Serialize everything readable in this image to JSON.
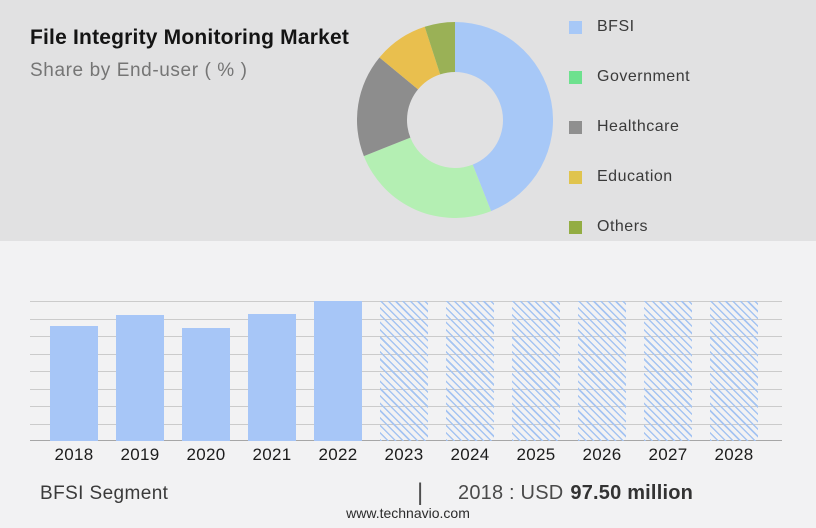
{
  "header": {
    "title": "File Integrity Monitoring Market",
    "subtitle": "Share by End-user ( % )"
  },
  "footer": {
    "segment_label": "BFSI Segment",
    "separator": "|",
    "stat_prefix": "2018 : USD",
    "stat_value": "97.50 million",
    "website": "www.technavio.com"
  },
  "colors": {
    "top_bg": "#E1E1E2",
    "bottom_bg": "#F2F2F3",
    "gridline": "#CBCBCB",
    "axis_line": "#A6A6A6",
    "solid_bar": "#A7C6F7",
    "hatch_stroke": "#A5C4F2",
    "title_text": "#141414",
    "subtitle_text": "#757575",
    "legend_text": "#3A3A3A"
  },
  "chart_data": [
    {
      "type": "pie",
      "subtype": "donut",
      "title": "File Integrity Monitoring Market - Share by End-user ( % )",
      "labels": [
        "BFSI",
        "Government",
        "Healthcare",
        "Education",
        "Others"
      ],
      "values": [
        44,
        25,
        17,
        9,
        5
      ],
      "unit": "%",
      "slice_colors": [
        "#A7C8F7",
        "#B4EFB3",
        "#8D8D8D",
        "#E9BF4E",
        "#9AB156"
      ],
      "legend_colors": [
        "#A7C8F7",
        "#6DE18E",
        "#8F8F8F",
        "#E0C44E",
        "#93AD43"
      ],
      "legend_position": "right",
      "start_angle_deg": 0,
      "direction": "clockwise",
      "inner_radius_ratio": 0.49,
      "note": "no numeric labels shown on chart; values estimated from arc angles"
    },
    {
      "type": "bar",
      "title": "BFSI Segment",
      "categories": [
        "2018",
        "2019",
        "2020",
        "2021",
        "2022",
        "2023",
        "2024",
        "2025",
        "2026",
        "2027",
        "2028"
      ],
      "series": [
        {
          "name": "BFSI segment size",
          "relative_heights": [
            0.82,
            0.9,
            0.81,
            0.91,
            1.0,
            1.0,
            1.0,
            1.0,
            1.0,
            1.0,
            1.0
          ],
          "styles": [
            "solid",
            "solid",
            "solid",
            "solid",
            "solid",
            "hatched",
            "hatched",
            "hatched",
            "hatched",
            "hatched",
            "hatched"
          ],
          "estimated_values_usd_million": [
            97.5,
            106.9,
            97.1,
            108.2,
            118.8,
            null,
            null,
            null,
            null,
            null,
            null
          ]
        }
      ],
      "anchor_label": "2018 : USD 97.50 million",
      "forecast_years": [
        "2023",
        "2024",
        "2025",
        "2026",
        "2027",
        "2028"
      ],
      "gridline_count": 9,
      "xlabel": "",
      "ylabel": "",
      "y_axis_labels_shown": false
    }
  ]
}
